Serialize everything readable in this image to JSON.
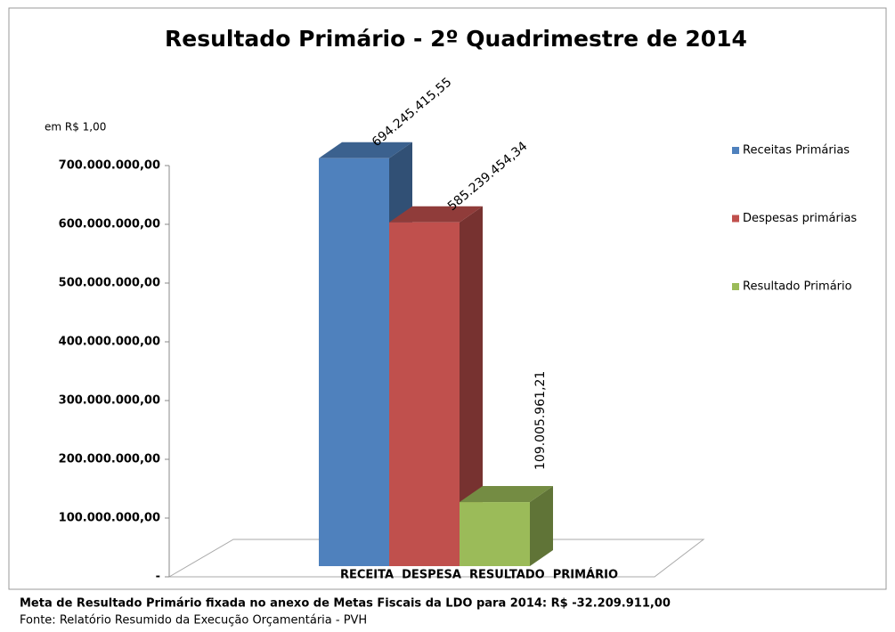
{
  "chart_data": {
    "type": "bar3d",
    "title": "Resultado Primário - 2º Quadrimestre de 2014",
    "unit_label": "em R$ 1,00",
    "categories": [
      "RECEITA  DESPESA  RESULTADO  PRIMÁRIO"
    ],
    "series": [
      {
        "name": "Receitas Primárias",
        "color": "#4f81bd",
        "values": [
          694245415.55
        ],
        "value_labels": [
          "694.245.415,55"
        ]
      },
      {
        "name": "Despesas primárias",
        "color": "#c0504d",
        "values": [
          585239454.34
        ],
        "value_labels": [
          "585.239.454,34"
        ]
      },
      {
        "name": "Resultado Primário",
        "color": "#9bbb59",
        "values": [
          109005961.21
        ],
        "value_labels": [
          "109.005.961,21"
        ]
      }
    ],
    "ylim": [
      0,
      700000000
    ],
    "yticks": [
      {
        "value": 0,
        "label": "-"
      },
      {
        "value": 100000000,
        "label": "100.000.000,00"
      },
      {
        "value": 200000000,
        "label": "200.000.000,00"
      },
      {
        "value": 300000000,
        "label": "300.000.000,00"
      },
      {
        "value": 400000000,
        "label": "400.000.000,00"
      },
      {
        "value": 500000000,
        "label": "500.000.000,00"
      },
      {
        "value": 600000000,
        "label": "600.000.000,00"
      },
      {
        "value": 700000000,
        "label": "700.000.000,00"
      }
    ],
    "legend": "right",
    "footnote": "Meta de Resultado Primário fixada no anexo de Metas Fiscais da LDO para 2014: R$ -32.209.911,00",
    "source": "Fonte: Relatório Resumido da Execução Orçamentária - PVH"
  }
}
